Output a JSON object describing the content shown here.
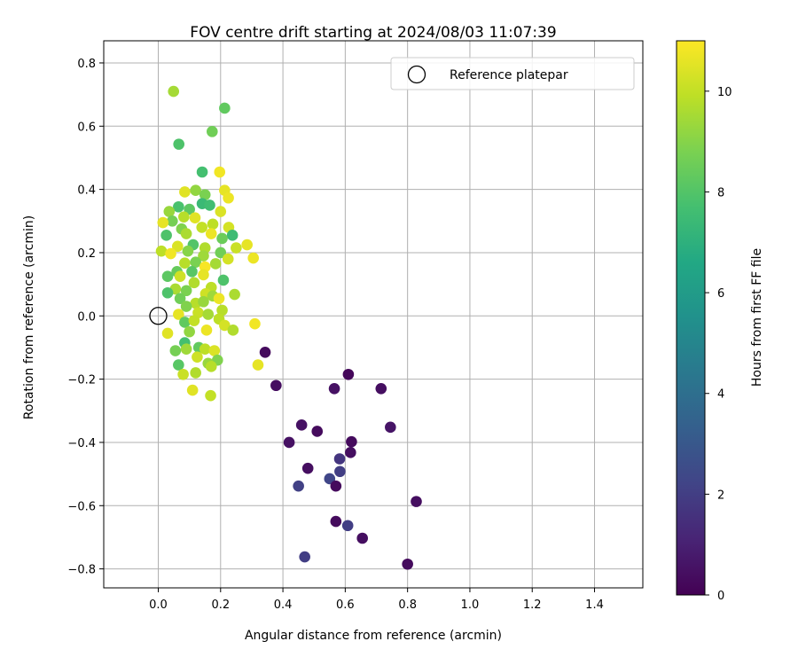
{
  "chart_data": {
    "type": "scatter",
    "title": "FOV centre drift starting at 2024/08/03 11:07:39",
    "xlabel": "Angular distance from reference (arcmin)",
    "ylabel": "Rotation from reference (arcmin)",
    "xlim": [
      -0.175,
      1.555
    ],
    "ylim": [
      -0.86,
      0.87
    ],
    "xticks": [
      0.0,
      0.2,
      0.4,
      0.6,
      0.8,
      1.0,
      1.2,
      1.4
    ],
    "yticks": [
      -0.8,
      -0.6,
      -0.4,
      -0.2,
      0.0,
      0.2,
      0.4,
      0.6,
      0.8
    ],
    "grid": true,
    "legend": {
      "placement": "top-right",
      "entries": [
        "Reference platepar"
      ]
    },
    "colorbar": {
      "label": "Hours from first FF file",
      "colormap": "viridis",
      "range": [
        0,
        11
      ],
      "ticks": [
        0,
        2,
        4,
        6,
        8,
        10
      ]
    },
    "reference_point": {
      "name": "Reference platepar",
      "x": 0.0,
      "y": 0.0
    },
    "series": [
      {
        "points": [
          {
            "x": 0.049,
            "y": 0.71,
            "h": 9.5
          },
          {
            "x": 0.213,
            "y": 0.657,
            "h": 8.3
          },
          {
            "x": 0.066,
            "y": 0.543,
            "h": 7.9
          },
          {
            "x": 0.173,
            "y": 0.583,
            "h": 8.6
          },
          {
            "x": 0.141,
            "y": 0.455,
            "h": 7.7
          },
          {
            "x": 0.197,
            "y": 0.455,
            "h": 10.8
          },
          {
            "x": 0.085,
            "y": 0.392,
            "h": 10.5
          },
          {
            "x": 0.12,
            "y": 0.397,
            "h": 9.2
          },
          {
            "x": 0.15,
            "y": 0.383,
            "h": 8.8
          },
          {
            "x": 0.213,
            "y": 0.397,
            "h": 10.6
          },
          {
            "x": 0.225,
            "y": 0.373,
            "h": 10.7
          },
          {
            "x": 0.141,
            "y": 0.355,
            "h": 7.4
          },
          {
            "x": 0.065,
            "y": 0.345,
            "h": 7.8
          },
          {
            "x": 0.035,
            "y": 0.33,
            "h": 9.3
          },
          {
            "x": 0.1,
            "y": 0.337,
            "h": 8.2
          },
          {
            "x": 0.165,
            "y": 0.35,
            "h": 7.6
          },
          {
            "x": 0.2,
            "y": 0.33,
            "h": 10.4
          },
          {
            "x": 0.045,
            "y": 0.3,
            "h": 8.7
          },
          {
            "x": 0.082,
            "y": 0.313,
            "h": 9.8
          },
          {
            "x": 0.118,
            "y": 0.31,
            "h": 10.5
          },
          {
            "x": 0.175,
            "y": 0.29,
            "h": 9.9
          },
          {
            "x": 0.015,
            "y": 0.295,
            "h": 10.6
          },
          {
            "x": 0.075,
            "y": 0.275,
            "h": 8.9
          },
          {
            "x": 0.14,
            "y": 0.28,
            "h": 10.0
          },
          {
            "x": 0.226,
            "y": 0.28,
            "h": 10.3
          },
          {
            "x": 0.026,
            "y": 0.255,
            "h": 7.9
          },
          {
            "x": 0.09,
            "y": 0.26,
            "h": 9.6
          },
          {
            "x": 0.17,
            "y": 0.26,
            "h": 10.7
          },
          {
            "x": 0.238,
            "y": 0.255,
            "h": 7.5
          },
          {
            "x": 0.205,
            "y": 0.245,
            "h": 8.5
          },
          {
            "x": 0.285,
            "y": 0.225,
            "h": 10.6
          },
          {
            "x": 0.112,
            "y": 0.225,
            "h": 8.0
          },
          {
            "x": 0.062,
            "y": 0.22,
            "h": 10.4
          },
          {
            "x": 0.15,
            "y": 0.215,
            "h": 9.7
          },
          {
            "x": 0.01,
            "y": 0.205,
            "h": 9.9
          },
          {
            "x": 0.04,
            "y": 0.197,
            "h": 10.8
          },
          {
            "x": 0.095,
            "y": 0.205,
            "h": 9.0
          },
          {
            "x": 0.2,
            "y": 0.2,
            "h": 8.6
          },
          {
            "x": 0.25,
            "y": 0.215,
            "h": 10.1
          },
          {
            "x": 0.305,
            "y": 0.183,
            "h": 10.7
          },
          {
            "x": 0.145,
            "y": 0.19,
            "h": 9.4
          },
          {
            "x": 0.224,
            "y": 0.18,
            "h": 10.3
          },
          {
            "x": 0.085,
            "y": 0.167,
            "h": 9.8
          },
          {
            "x": 0.12,
            "y": 0.17,
            "h": 8.8
          },
          {
            "x": 0.15,
            "y": 0.155,
            "h": 10.9
          },
          {
            "x": 0.184,
            "y": 0.165,
            "h": 9.5
          },
          {
            "x": 0.06,
            "y": 0.14,
            "h": 8.4
          },
          {
            "x": 0.108,
            "y": 0.14,
            "h": 8.1
          },
          {
            "x": 0.03,
            "y": 0.125,
            "h": 8.2
          },
          {
            "x": 0.07,
            "y": 0.125,
            "h": 10.2
          },
          {
            "x": 0.145,
            "y": 0.13,
            "h": 10.6
          },
          {
            "x": 0.209,
            "y": 0.113,
            "h": 7.9
          },
          {
            "x": 0.115,
            "y": 0.105,
            "h": 9.7
          },
          {
            "x": 0.17,
            "y": 0.09,
            "h": 9.9
          },
          {
            "x": 0.055,
            "y": 0.085,
            "h": 9.6
          },
          {
            "x": 0.09,
            "y": 0.08,
            "h": 8.8
          },
          {
            "x": 0.03,
            "y": 0.073,
            "h": 7.9
          },
          {
            "x": 0.152,
            "y": 0.07,
            "h": 10.2
          },
          {
            "x": 0.175,
            "y": 0.063,
            "h": 9.4
          },
          {
            "x": 0.245,
            "y": 0.068,
            "h": 9.6
          },
          {
            "x": 0.07,
            "y": 0.055,
            "h": 8.6
          },
          {
            "x": 0.12,
            "y": 0.04,
            "h": 9.8
          },
          {
            "x": 0.09,
            "y": 0.03,
            "h": 8.9
          },
          {
            "x": 0.195,
            "y": 0.055,
            "h": 10.7
          },
          {
            "x": 0.145,
            "y": 0.045,
            "h": 9.3
          },
          {
            "x": 0.128,
            "y": 0.01,
            "h": 10.1
          },
          {
            "x": 0.16,
            "y": 0.005,
            "h": 9.5
          },
          {
            "x": 0.205,
            "y": 0.018,
            "h": 9.8
          },
          {
            "x": 0.065,
            "y": 0.005,
            "h": 10.6
          },
          {
            "x": 0.085,
            "y": -0.02,
            "h": 8.3
          },
          {
            "x": 0.115,
            "y": -0.015,
            "h": 10.0
          },
          {
            "x": 0.195,
            "y": -0.01,
            "h": 9.9
          },
          {
            "x": 0.213,
            "y": -0.03,
            "h": 10.3
          },
          {
            "x": 0.24,
            "y": -0.045,
            "h": 9.7
          },
          {
            "x": 0.31,
            "y": -0.025,
            "h": 10.8
          },
          {
            "x": 0.03,
            "y": -0.055,
            "h": 10.5
          },
          {
            "x": 0.1,
            "y": -0.05,
            "h": 9.2
          },
          {
            "x": 0.155,
            "y": -0.045,
            "h": 10.7
          },
          {
            "x": 0.085,
            "y": -0.085,
            "h": 7.7
          },
          {
            "x": 0.13,
            "y": -0.1,
            "h": 8.3
          },
          {
            "x": 0.055,
            "y": -0.11,
            "h": 8.7
          },
          {
            "x": 0.09,
            "y": -0.105,
            "h": 9.4
          },
          {
            "x": 0.15,
            "y": -0.105,
            "h": 9.9
          },
          {
            "x": 0.18,
            "y": -0.11,
            "h": 10.4
          },
          {
            "x": 0.125,
            "y": -0.13,
            "h": 10.2
          },
          {
            "x": 0.19,
            "y": -0.14,
            "h": 8.9
          },
          {
            "x": 0.065,
            "y": -0.155,
            "h": 8.1
          },
          {
            "x": 0.16,
            "y": -0.15,
            "h": 9.3
          },
          {
            "x": 0.32,
            "y": -0.155,
            "h": 10.6
          },
          {
            "x": 0.17,
            "y": -0.16,
            "h": 9.8
          },
          {
            "x": 0.08,
            "y": -0.185,
            "h": 10.1
          },
          {
            "x": 0.12,
            "y": -0.18,
            "h": 9.7
          },
          {
            "x": 0.11,
            "y": -0.235,
            "h": 10.5
          },
          {
            "x": 0.168,
            "y": -0.252,
            "h": 10.0
          },
          {
            "x": 0.343,
            "y": -0.115,
            "h": 0.3
          },
          {
            "x": 0.378,
            "y": -0.22,
            "h": 0.4
          },
          {
            "x": 0.565,
            "y": -0.23,
            "h": 0.5
          },
          {
            "x": 0.61,
            "y": -0.185,
            "h": 0.2
          },
          {
            "x": 0.715,
            "y": -0.23,
            "h": 0.4
          },
          {
            "x": 0.46,
            "y": -0.345,
            "h": 0.5
          },
          {
            "x": 0.51,
            "y": -0.365,
            "h": 0.3
          },
          {
            "x": 0.745,
            "y": -0.352,
            "h": 0.6
          },
          {
            "x": 0.42,
            "y": -0.4,
            "h": 0.5
          },
          {
            "x": 0.62,
            "y": -0.398,
            "h": 0.3
          },
          {
            "x": 0.617,
            "y": -0.432,
            "h": 0.4
          },
          {
            "x": 0.582,
            "y": -0.452,
            "h": 1.7
          },
          {
            "x": 0.48,
            "y": -0.482,
            "h": 0.4
          },
          {
            "x": 0.583,
            "y": -0.492,
            "h": 2.0
          },
          {
            "x": 0.55,
            "y": -0.515,
            "h": 2.3
          },
          {
            "x": 0.45,
            "y": -0.538,
            "h": 2.1
          },
          {
            "x": 0.57,
            "y": -0.538,
            "h": 0.3
          },
          {
            "x": 0.828,
            "y": -0.587,
            "h": 0.4
          },
          {
            "x": 0.57,
            "y": -0.65,
            "h": 0.3
          },
          {
            "x": 0.608,
            "y": -0.663,
            "h": 2.0
          },
          {
            "x": 0.655,
            "y": -0.703,
            "h": 0.4
          },
          {
            "x": 0.47,
            "y": -0.762,
            "h": 2.0
          },
          {
            "x": 0.8,
            "y": -0.785,
            "h": 0.3
          }
        ]
      }
    ]
  }
}
